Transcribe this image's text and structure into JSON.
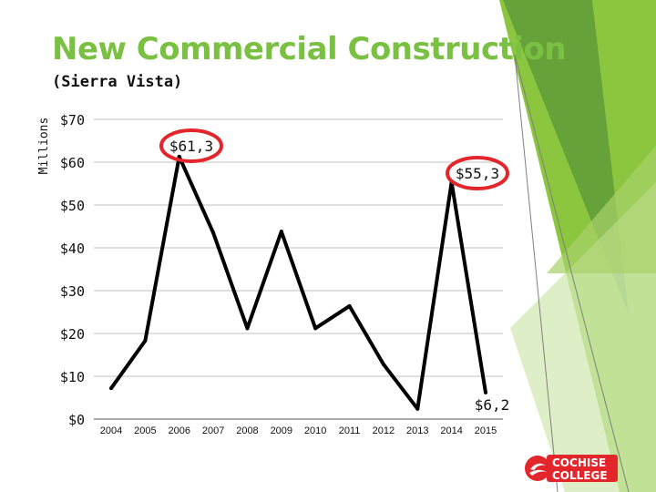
{
  "slide": {
    "title": "New Commercial Construction",
    "subtitle": "(Sierra Vista)",
    "logo_text": [
      "COCHISE",
      "COLLEGE"
    ]
  },
  "colors": {
    "title": "#7ac143",
    "line": "#000000",
    "highlight": "#e3262b",
    "deco_dark": "#5f9a3a",
    "deco_light": "#8cc63f",
    "deco_pale": "#d3e9b4",
    "logo_bg": "#e3262b"
  },
  "chart_data": {
    "type": "line",
    "title": "",
    "xlabel": "",
    "ylabel": "Millions",
    "categories": [
      "2004",
      "2005",
      "2006",
      "2007",
      "2008",
      "2009",
      "2010",
      "2011",
      "2012",
      "2013",
      "2014",
      "2015"
    ],
    "series": [
      {
        "values": [
          7.2,
          18.3,
          61.3,
          43.5,
          21.2,
          43.8,
          21.2,
          26.4,
          12.8,
          2.4,
          55.3,
          6.2
        ]
      }
    ],
    "ylim": [
      0,
      70
    ],
    "yticks": [
      0,
      10,
      20,
      30,
      40,
      50,
      60,
      70
    ],
    "ytick_labels": [
      "$0",
      "$10",
      "$20",
      "$30",
      "$40",
      "$50",
      "$60",
      "$70"
    ],
    "grid": true,
    "annotations": [
      {
        "text": "$61,3",
        "x": "2006",
        "y": 61.3,
        "highlighted": true
      },
      {
        "text": "$55,3",
        "x": "2014",
        "y": 55.3,
        "highlighted": true
      },
      {
        "text": "$6,2",
        "x": "2015",
        "y": 6.2,
        "highlighted": false
      }
    ]
  }
}
